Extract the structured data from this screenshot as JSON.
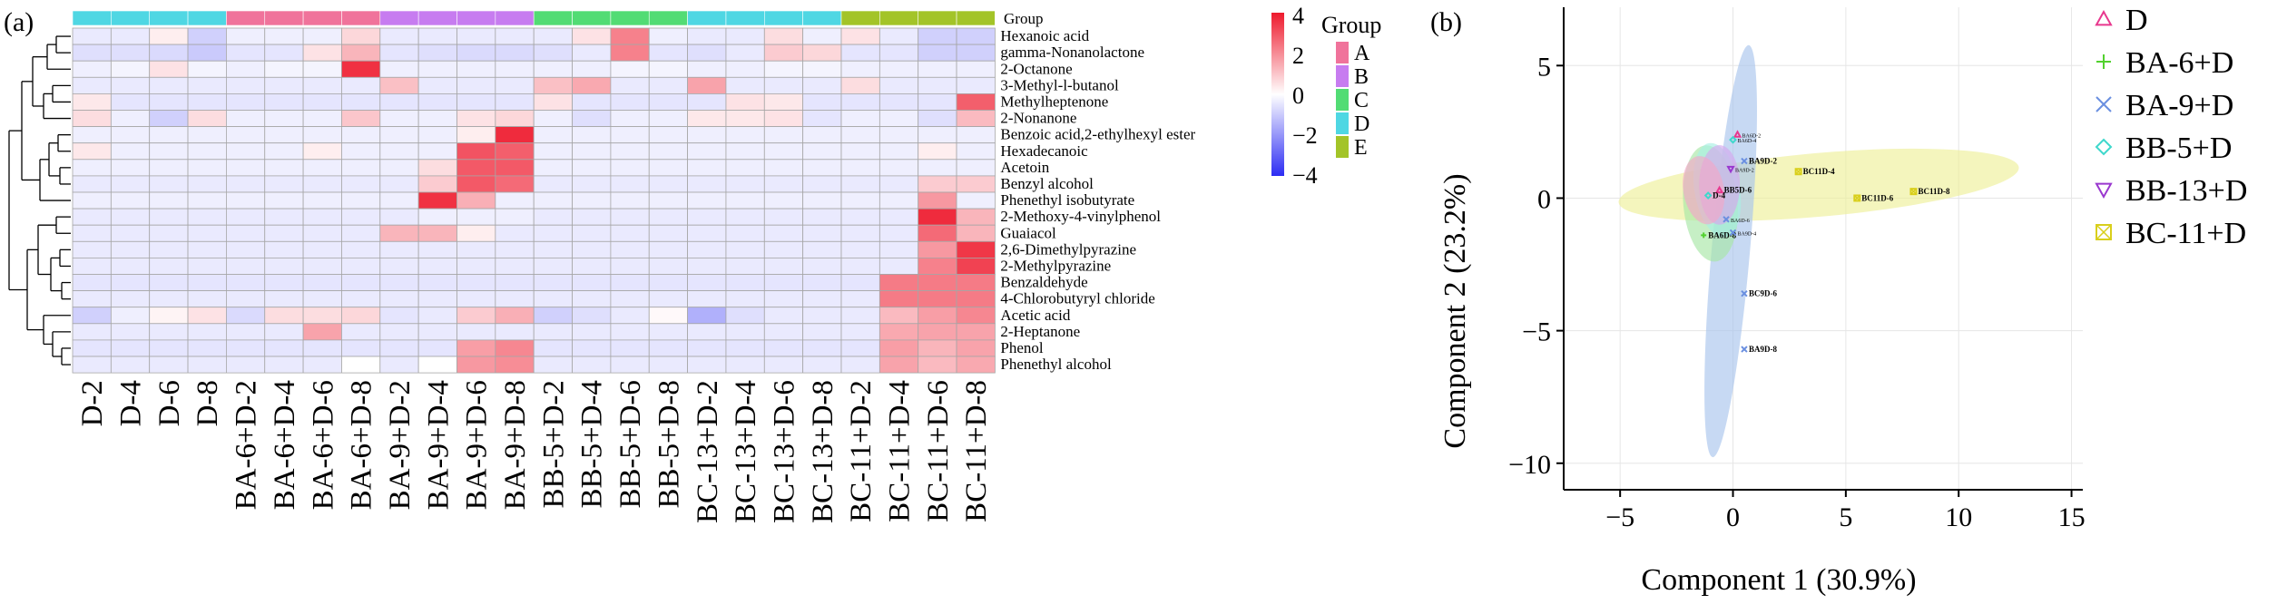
{
  "panel_a_label": "(a)",
  "panel_b_label": "(b)",
  "group_row_label": "Group",
  "colors": {
    "group_A": "#f0739b",
    "group_B": "#c77cf0",
    "group_C": "#52dc74",
    "group_D": "#4fd7e3",
    "group_E": "#a3c428",
    "heat_high": "#ee1a2d",
    "heat_mid": "#ffffff",
    "heat_low": "#2c2cf3",
    "ell_D": "#f3a8c7",
    "ell_BA6": "#a7e7a6",
    "ell_BA9": "#a9c4ec",
    "ell_BB5": "#a8efe3",
    "ell_BB13": "#d6a8ee",
    "ell_BC11": "#eef09a"
  },
  "chart_data": [
    {
      "type": "heatmap",
      "columns": [
        "D-2",
        "D-4",
        "D-6",
        "D-8",
        "BA-6+D-2",
        "BA-6+D-4",
        "BA-6+D-6",
        "BA-6+D-8",
        "BA-9+D-2",
        "BA-9+D-4",
        "BA-9+D-6",
        "BA-9+D-8",
        "BB-5+D-2",
        "BB-5+D-4",
        "BB-5+D-6",
        "BB-5+D-8",
        "BC-13+D-2",
        "BC-13+D-4",
        "BC-13+D-6",
        "BC-13+D-8",
        "BC-11+D-2",
        "BC-11+D-4",
        "BC-11+D-6",
        "BC-11+D-8"
      ],
      "column_groups": [
        "D",
        "D",
        "D",
        "D",
        "A",
        "A",
        "A",
        "A",
        "B",
        "B",
        "B",
        "B",
        "C",
        "C",
        "C",
        "C",
        "D",
        "D",
        "D",
        "D",
        "E",
        "E",
        "E",
        "E"
      ],
      "rows": [
        "Hexanoic acid",
        "gamma-Nonanolactone",
        "2-Octanone",
        "3-Methyl-l-butanol",
        "Methylheptenone",
        "2-Nonanone",
        "Benzoic acid,2-ethylhexyl ester",
        "Hexadecanoic",
        "Acetoin",
        "Benzyl alcohol",
        "Phenethyl isobutyrate",
        "2-Methoxy-4-vinylphenol",
        "Guaiacol",
        "2,6-Dimethylpyrazine",
        "2-Methylpyrazine",
        "Benzaldehyde",
        "4-Chlorobutyryl chloride",
        "Acetic acid",
        "2-Heptanone",
        "Phenol",
        "Phenethyl alcohol"
      ],
      "values": [
        [
          -0.4,
          -0.4,
          0.3,
          -0.9,
          -0.3,
          -0.3,
          -0.3,
          0.7,
          -0.4,
          -0.4,
          -0.4,
          -0.4,
          -0.4,
          0.5,
          2.2,
          -0.3,
          -0.4,
          -0.4,
          0.6,
          -0.3,
          0.5,
          -0.4,
          -0.9,
          -0.9
        ],
        [
          -0.6,
          -0.6,
          -0.7,
          -1.0,
          -0.5,
          -0.5,
          0.5,
          1.3,
          -0.5,
          -0.6,
          -0.7,
          -0.7,
          -0.6,
          -0.4,
          2.2,
          -0.5,
          -0.6,
          -0.4,
          0.9,
          0.7,
          -0.5,
          -0.5,
          -0.9,
          -0.9
        ],
        [
          -0.3,
          -0.2,
          0.5,
          -0.2,
          -0.3,
          -0.2,
          -0.2,
          3.6,
          -0.3,
          -0.3,
          -0.3,
          -0.3,
          -0.3,
          -0.3,
          -0.2,
          -0.2,
          -0.3,
          -0.3,
          -0.2,
          -0.2,
          -0.3,
          -0.3,
          -0.3,
          -0.3
        ],
        [
          -0.4,
          -0.4,
          -0.4,
          -0.4,
          -0.4,
          -0.4,
          -0.4,
          -0.4,
          1.1,
          -0.4,
          -0.4,
          -0.4,
          1.1,
          1.5,
          -0.4,
          -0.4,
          1.6,
          -0.4,
          -0.4,
          -0.4,
          0.6,
          -0.4,
          -0.4,
          -0.4
        ],
        [
          0.4,
          -0.5,
          -0.5,
          -0.5,
          -0.5,
          -0.5,
          -0.5,
          -0.5,
          -0.5,
          -0.5,
          -0.5,
          -0.5,
          0.5,
          -0.5,
          -0.5,
          -0.5,
          -0.5,
          0.5,
          0.4,
          -0.5,
          -0.5,
          -0.5,
          -0.5,
          2.8
        ],
        [
          0.6,
          -0.3,
          -0.9,
          0.6,
          -0.3,
          -0.3,
          -0.3,
          1.0,
          -0.3,
          -0.3,
          0.5,
          0.7,
          -0.3,
          -0.6,
          -0.3,
          -0.3,
          0.4,
          0.4,
          0.5,
          -0.5,
          -0.3,
          -0.3,
          -0.6,
          1.2
        ],
        [
          -0.3,
          -0.3,
          -0.3,
          -0.3,
          -0.3,
          -0.3,
          -0.3,
          -0.3,
          -0.3,
          -0.3,
          0.3,
          3.7,
          -0.3,
          -0.3,
          -0.3,
          -0.3,
          -0.3,
          -0.3,
          -0.3,
          -0.3,
          -0.3,
          -0.3,
          -0.3,
          -0.3
        ],
        [
          0.4,
          -0.3,
          -0.3,
          -0.3,
          -0.3,
          -0.3,
          0.3,
          -0.3,
          -0.3,
          -0.3,
          3.0,
          2.8,
          -0.3,
          -0.3,
          -0.3,
          -0.3,
          -0.3,
          -0.3,
          -0.3,
          -0.3,
          -0.3,
          -0.3,
          0.3,
          -0.3
        ],
        [
          -0.3,
          -0.3,
          -0.3,
          -0.3,
          -0.3,
          -0.3,
          -0.3,
          -0.3,
          -0.3,
          0.6,
          2.9,
          2.9,
          -0.3,
          -0.3,
          -0.3,
          -0.3,
          -0.3,
          -0.3,
          -0.3,
          -0.3,
          -0.3,
          -0.3,
          -0.3,
          -0.3
        ],
        [
          -0.4,
          -0.4,
          -0.4,
          -0.4,
          -0.4,
          -0.4,
          -0.4,
          -0.4,
          -0.4,
          0.9,
          2.9,
          2.6,
          -0.4,
          -0.4,
          -0.4,
          -0.4,
          -0.4,
          -0.4,
          -0.4,
          -0.4,
          -0.4,
          -0.4,
          0.9,
          0.9
        ],
        [
          -0.3,
          -0.3,
          -0.3,
          -0.3,
          -0.3,
          -0.3,
          -0.3,
          -0.3,
          -0.3,
          3.6,
          1.4,
          -0.3,
          -0.3,
          -0.3,
          -0.3,
          -0.3,
          -0.3,
          -0.3,
          -0.3,
          -0.3,
          -0.3,
          -0.3,
          1.8,
          -0.3
        ],
        [
          -0.4,
          -0.4,
          -0.4,
          -0.4,
          -0.4,
          -0.4,
          -0.4,
          -0.4,
          -0.4,
          -0.3,
          -0.3,
          -0.3,
          -0.4,
          -0.4,
          -0.4,
          -0.4,
          -0.4,
          -0.4,
          -0.4,
          -0.4,
          -0.4,
          -0.4,
          3.7,
          1.3
        ],
        [
          -0.4,
          -0.4,
          -0.4,
          -0.4,
          -0.4,
          -0.4,
          -0.4,
          -0.4,
          1.3,
          1.3,
          0.3,
          -0.4,
          -0.4,
          -0.4,
          -0.4,
          -0.4,
          -0.4,
          -0.4,
          -0.4,
          -0.4,
          -0.4,
          -0.4,
          2.6,
          1.3
        ],
        [
          -0.4,
          -0.4,
          -0.4,
          -0.4,
          -0.4,
          -0.4,
          -0.4,
          -0.4,
          -0.4,
          -0.4,
          -0.4,
          -0.4,
          -0.4,
          -0.4,
          -0.4,
          -0.4,
          -0.4,
          -0.4,
          -0.4,
          -0.4,
          -0.4,
          -0.4,
          1.8,
          3.5
        ],
        [
          -0.4,
          -0.4,
          -0.4,
          -0.4,
          -0.4,
          -0.4,
          -0.4,
          -0.4,
          -0.4,
          -0.4,
          -0.4,
          -0.4,
          -0.4,
          -0.4,
          -0.4,
          -0.4,
          -0.4,
          -0.4,
          -0.4,
          -0.4,
          -0.4,
          -0.4,
          2.2,
          3.3
        ],
        [
          -0.5,
          -0.5,
          -0.5,
          -0.5,
          -0.5,
          -0.5,
          -0.5,
          -0.5,
          -0.5,
          -0.5,
          -0.5,
          -0.5,
          -0.5,
          -0.5,
          -0.5,
          -0.5,
          -0.5,
          -0.5,
          -0.5,
          -0.5,
          -0.5,
          2.3,
          2.3,
          2.3
        ],
        [
          -0.4,
          -0.4,
          -0.4,
          -0.4,
          -0.4,
          -0.4,
          -0.4,
          -0.4,
          -0.4,
          -0.4,
          -0.4,
          -0.4,
          -0.4,
          -0.4,
          -0.4,
          -0.4,
          -0.4,
          -0.4,
          -0.4,
          -0.4,
          -0.4,
          2.3,
          2.3,
          2.3
        ],
        [
          -0.9,
          -0.3,
          0.2,
          0.5,
          -0.7,
          0.6,
          0.6,
          0.7,
          -0.5,
          -0.4,
          0.9,
          1.4,
          -0.9,
          -0.6,
          -0.4,
          0.1,
          -1.5,
          -0.6,
          -0.4,
          -0.4,
          -0.4,
          1.2,
          1.7,
          2.1
        ],
        [
          -0.4,
          -0.4,
          -0.4,
          -0.4,
          -0.4,
          -0.4,
          1.6,
          -0.4,
          -0.4,
          -0.4,
          -0.4,
          -0.4,
          -0.4,
          -0.4,
          -0.4,
          -0.4,
          -0.4,
          -0.4,
          -0.4,
          -0.4,
          -0.4,
          1.5,
          1.6,
          1.6
        ],
        [
          -0.5,
          -0.5,
          -0.5,
          -0.5,
          -0.5,
          -0.5,
          -0.5,
          -0.5,
          -0.5,
          -0.5,
          1.7,
          2.1,
          -0.5,
          -0.5,
          -0.5,
          -0.5,
          -0.5,
          -0.5,
          -0.5,
          -0.5,
          -0.5,
          1.7,
          1.3,
          1.6
        ],
        [
          -0.4,
          -0.4,
          -0.4,
          -0.4,
          -0.4,
          -0.4,
          -0.4,
          0.0,
          -0.4,
          0.0,
          1.8,
          2.0,
          -0.4,
          -0.4,
          -0.4,
          -0.4,
          -0.4,
          -0.4,
          -0.4,
          -0.4,
          -0.4,
          1.6,
          1.2,
          1.5
        ]
      ],
      "legend_title": "Group",
      "legend_groups": [
        "A",
        "B",
        "C",
        "D",
        "E"
      ],
      "color_scale_ticks": [
        "4",
        "2",
        "0",
        "−2",
        "−4"
      ],
      "color_range": [
        -4,
        4
      ]
    },
    {
      "type": "scatter",
      "xlabel": "Component 1 (30.9%)",
      "ylabel": "Component 2 (23.2%)",
      "xlim": [
        -7.5,
        15.5
      ],
      "ylim": [
        -11,
        7.2
      ],
      "xticks": [
        -5,
        0,
        5,
        10,
        15
      ],
      "yticks": [
        5,
        0,
        -5,
        -10
      ],
      "grid": true,
      "legend_position": "right",
      "series": [
        {
          "name": "D",
          "marker": "triangle-up",
          "color": "#e8388e"
        },
        {
          "name": "BA-6+D",
          "marker": "plus",
          "color": "#52d12e"
        },
        {
          "name": "BA-9+D",
          "marker": "x",
          "color": "#6a8fe0"
        },
        {
          "name": "BB-5+D",
          "marker": "diamond",
          "color": "#3fd8cc"
        },
        {
          "name": "BB-13+D",
          "marker": "triangle-down",
          "color": "#9a38cf"
        },
        {
          "name": "BC-11+D",
          "marker": "square-x",
          "color": "#d9cf1c"
        }
      ],
      "points": [
        {
          "series": 5,
          "x": 2.9,
          "y": 1.0,
          "label": "BC11D-4"
        },
        {
          "series": 5,
          "x": 5.5,
          "y": 0.0,
          "label": "BC11D-6"
        },
        {
          "series": 5,
          "x": 8.0,
          "y": 0.25,
          "label": "BC11D-8"
        },
        {
          "series": 2,
          "x": 0.5,
          "y": -3.6,
          "label": "BC9D-6"
        },
        {
          "series": 2,
          "x": 0.5,
          "y": -5.7,
          "label": "BA9D-8"
        },
        {
          "series": 1,
          "x": -1.3,
          "y": -1.4,
          "label": "BA6D-8"
        },
        {
          "series": 2,
          "x": 0.0,
          "y": -1.3,
          "label": "BA9D-4"
        },
        {
          "series": 2,
          "x": -0.3,
          "y": -0.8,
          "label": "BA6D-6"
        },
        {
          "series": 0,
          "x": 0.2,
          "y": 2.4,
          "label": "BA6D-2"
        },
        {
          "series": 3,
          "x": 0.0,
          "y": 2.2,
          "label": "BA6D-4"
        },
        {
          "series": 2,
          "x": 0.5,
          "y": 1.4,
          "label": "BA9D-2"
        },
        {
          "series": 4,
          "x": -0.1,
          "y": 1.1,
          "label": "BA9D-2"
        },
        {
          "series": 0,
          "x": -0.6,
          "y": 0.3,
          "label": "BB5D-6"
        },
        {
          "series": 3,
          "x": -1.1,
          "y": 0.1,
          "label": "D-4"
        }
      ],
      "ellipses": [
        {
          "series": 0,
          "cx": -1.3,
          "cy": 0.3,
          "rx": 0.9,
          "ry": 1.3,
          "angle": 10
        },
        {
          "series": 1,
          "cx": -1.0,
          "cy": -0.2,
          "rx": 1.2,
          "ry": 2.2,
          "angle": 5
        },
        {
          "series": 2,
          "cx": -0.1,
          "cy": -2.0,
          "rx": 0.85,
          "ry": 7.8,
          "angle": -5
        },
        {
          "series": 3,
          "cx": -0.7,
          "cy": 0.3,
          "rx": 1.0,
          "ry": 1.8,
          "angle": 10
        },
        {
          "series": 4,
          "cx": -0.6,
          "cy": 0.5,
          "rx": 0.9,
          "ry": 1.5,
          "angle": 0
        },
        {
          "series": 5,
          "cx": 3.8,
          "cy": 0.5,
          "rx": 8.9,
          "ry": 1.2,
          "angle": 5
        }
      ]
    }
  ]
}
